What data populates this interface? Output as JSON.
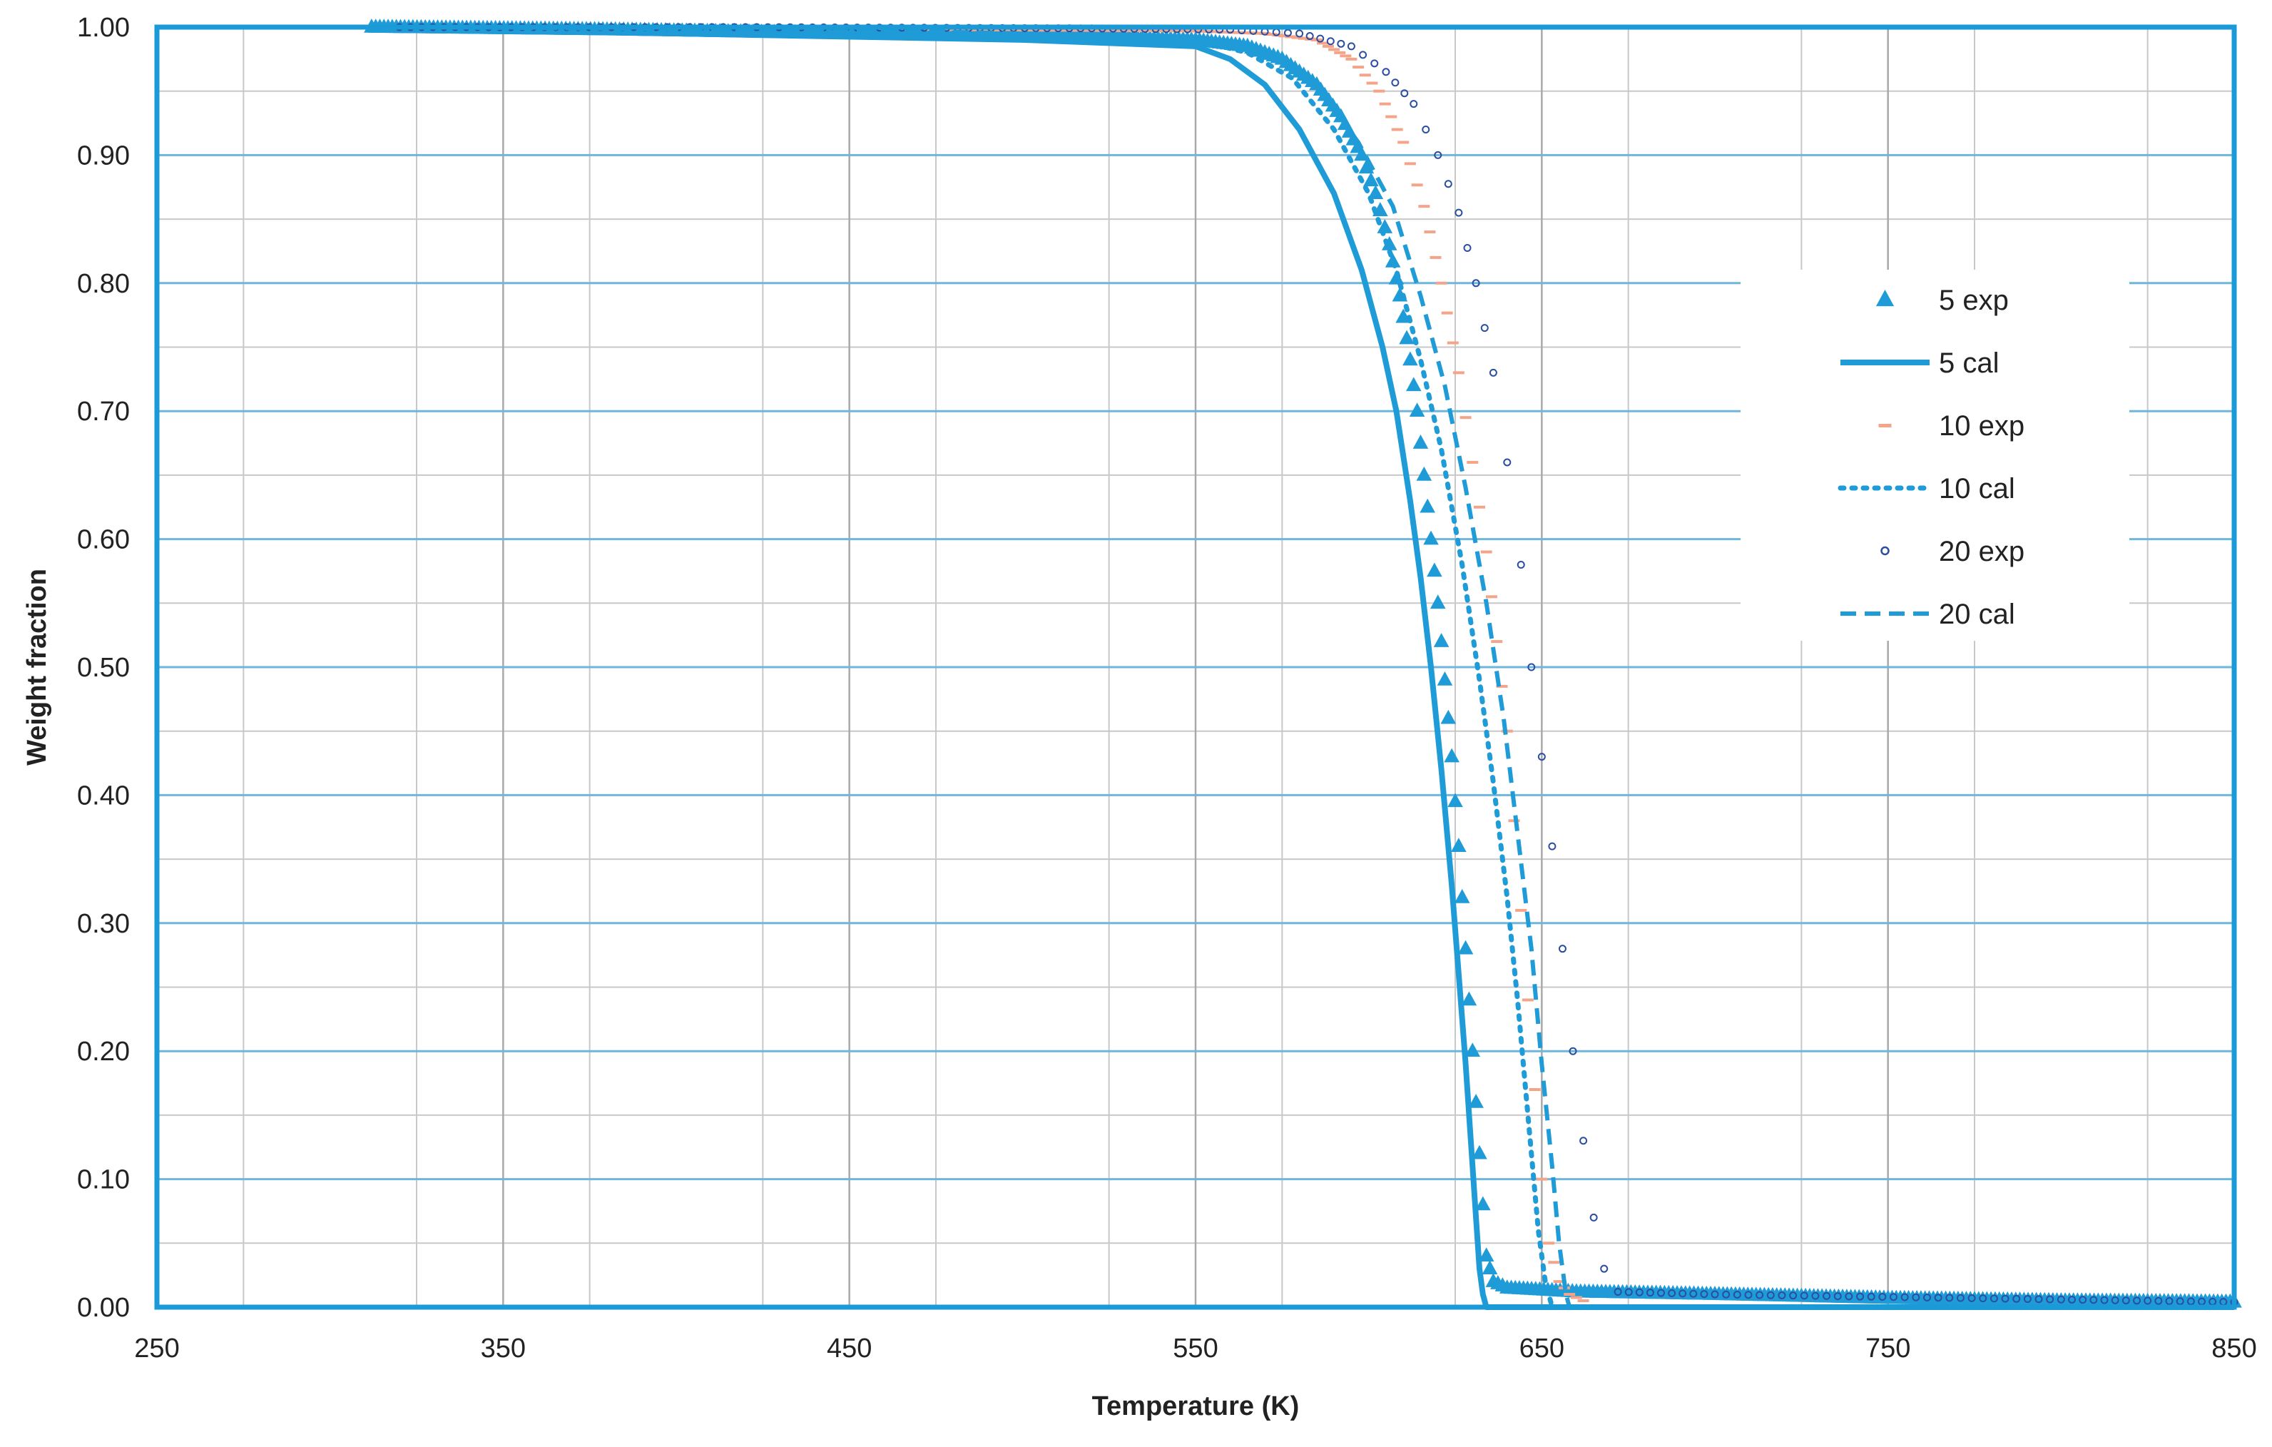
{
  "chart_data": {
    "type": "scatter",
    "title": "",
    "xlabel": "Temperature (K)",
    "ylabel": "Weight fraction",
    "xlim": [
      250,
      850
    ],
    "ylim": [
      0,
      1.0
    ],
    "x_ticks": [
      250,
      350,
      450,
      550,
      650,
      750,
      850
    ],
    "y_ticks": [
      0.0,
      0.1,
      0.2,
      0.3,
      0.4,
      0.5,
      0.6,
      0.7,
      0.8,
      0.9,
      1.0
    ],
    "x_tick_labels": [
      "250",
      "350",
      "450",
      "550",
      "650",
      "750",
      "850"
    ],
    "y_tick_labels": [
      "0.00",
      "0.10",
      "0.20",
      "0.30",
      "0.40",
      "0.50",
      "0.60",
      "0.70",
      "0.80",
      "0.90",
      "1.00"
    ],
    "grid": true,
    "legend_position": "right",
    "colors": {
      "frame": "#1a9ad6",
      "major_grid": "#6fb6dc",
      "minor_grid": "#c8c8c8",
      "series_blue": "#1f9bd7",
      "series_salmon": "#f4a589",
      "series_navy": "#2a4ea0"
    },
    "series": [
      {
        "name": "5 exp",
        "style": "triangle-marker",
        "x": [
          312,
          380,
          450,
          520,
          550,
          565,
          575,
          585,
          592,
          598,
          602,
          606,
          609,
          612,
          614,
          616,
          618,
          620,
          622,
          624,
          626,
          628,
          630,
          632,
          633,
          634,
          636,
          640,
          660,
          700,
          750,
          800,
          850
        ],
        "y": [
          1.0,
          0.998,
          0.995,
          0.993,
          0.99,
          0.985,
          0.975,
          0.955,
          0.93,
          0.9,
          0.87,
          0.83,
          0.79,
          0.74,
          0.7,
          0.65,
          0.6,
          0.55,
          0.49,
          0.43,
          0.36,
          0.28,
          0.2,
          0.12,
          0.08,
          0.04,
          0.02,
          0.015,
          0.012,
          0.01,
          0.007,
          0.005,
          0.004
        ]
      },
      {
        "name": "5 cal",
        "style": "solid-line",
        "x": [
          312,
          400,
          500,
          550,
          560,
          570,
          580,
          590,
          598,
          604,
          608,
          612,
          615,
          618,
          621,
          624,
          626,
          628,
          630,
          631,
          632,
          633,
          634,
          640,
          700,
          850
        ],
        "y": [
          1.0,
          0.995,
          0.99,
          0.985,
          0.975,
          0.955,
          0.92,
          0.87,
          0.81,
          0.75,
          0.7,
          0.63,
          0.57,
          0.5,
          0.42,
          0.33,
          0.26,
          0.19,
          0.11,
          0.07,
          0.03,
          0.01,
          0.0,
          0.0,
          0.0,
          0.0
        ]
      },
      {
        "name": "10 exp",
        "style": "dash-marker",
        "x": [
          400,
          480,
          550,
          570,
          585,
          595,
          603,
          610,
          616,
          621,
          626,
          630,
          634,
          637,
          640,
          642,
          644,
          646,
          648,
          650,
          652,
          655,
          658,
          662
        ],
        "y": [
          1.0,
          0.998,
          0.997,
          0.995,
          0.99,
          0.975,
          0.95,
          0.91,
          0.86,
          0.8,
          0.73,
          0.66,
          0.59,
          0.52,
          0.45,
          0.38,
          0.31,
          0.24,
          0.17,
          0.1,
          0.05,
          0.02,
          0.01,
          0.005
        ]
      },
      {
        "name": "10 cal",
        "style": "dotted-line",
        "x": [
          312,
          450,
          550,
          565,
          578,
          590,
          600,
          608,
          615,
          621,
          627,
          632,
          636,
          640,
          643,
          646,
          649,
          651,
          653,
          660,
          850
        ],
        "y": [
          1.0,
          0.998,
          0.99,
          0.98,
          0.96,
          0.92,
          0.87,
          0.81,
          0.74,
          0.67,
          0.58,
          0.49,
          0.41,
          0.32,
          0.24,
          0.15,
          0.06,
          0.02,
          0.0,
          0.0,
          0.0
        ]
      },
      {
        "name": "20 exp",
        "style": "circle-marker",
        "x": [
          320,
          420,
          520,
          560,
          580,
          595,
          605,
          613,
          620,
          626,
          631,
          636,
          640,
          644,
          647,
          650,
          653,
          656,
          659,
          662,
          665,
          668,
          672,
          700,
          800,
          850
        ],
        "y": [
          1.0,
          1.0,
          0.999,
          0.998,
          0.995,
          0.985,
          0.965,
          0.94,
          0.9,
          0.855,
          0.8,
          0.73,
          0.66,
          0.58,
          0.5,
          0.43,
          0.36,
          0.28,
          0.2,
          0.13,
          0.07,
          0.03,
          0.012,
          0.01,
          0.006,
          0.004
        ]
      },
      {
        "name": "20 cal",
        "style": "dashed-line",
        "x": [
          312,
          450,
          550,
          570,
          585,
          597,
          607,
          615,
          622,
          628,
          634,
          639,
          643,
          647,
          650,
          653,
          655,
          657,
          658,
          665,
          850
        ],
        "y": [
          1.0,
          0.998,
          0.992,
          0.98,
          0.955,
          0.91,
          0.86,
          0.79,
          0.72,
          0.64,
          0.55,
          0.46,
          0.37,
          0.28,
          0.19,
          0.11,
          0.05,
          0.01,
          0.0,
          0.0,
          0.0
        ]
      }
    ]
  }
}
